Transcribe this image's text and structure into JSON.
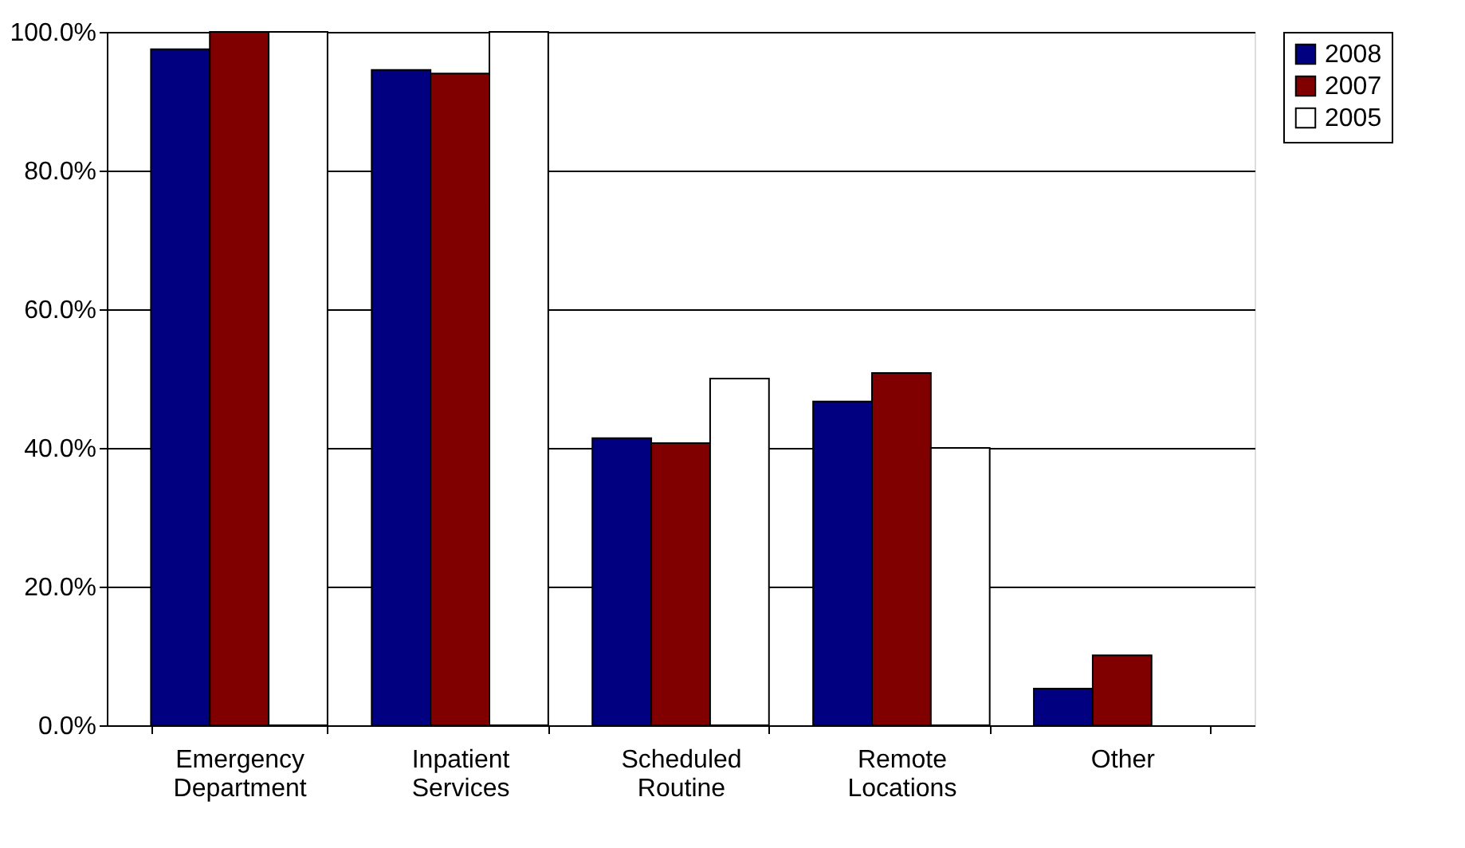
{
  "chart_data": {
    "type": "bar",
    "categories": [
      "Emergency Department",
      "Inpatient Services",
      "Scheduled Routine",
      "Remote Locations",
      "Other"
    ],
    "series": [
      {
        "name": "2008",
        "color": "#000080",
        "values": [
          97.5,
          94.5,
          41.4,
          46.7,
          5.3
        ]
      },
      {
        "name": "2007",
        "color": "#800000",
        "values": [
          100,
          94.0,
          40.7,
          50.8,
          10.1
        ]
      },
      {
        "name": "2005",
        "color": "#ffffff",
        "values": [
          100,
          100,
          50,
          40,
          null
        ]
      }
    ],
    "ylim": [
      0,
      100
    ],
    "yticks": [
      {
        "value": 0,
        "label": "0.0%"
      },
      {
        "value": 20,
        "label": "20.0%"
      },
      {
        "value": 40,
        "label": "40.0%"
      },
      {
        "value": 60,
        "label": "60.0%"
      },
      {
        "value": 80,
        "label": "80.0%"
      },
      {
        "value": 100,
        "label": "100.0%"
      }
    ],
    "grid": "y",
    "legend": "right"
  }
}
